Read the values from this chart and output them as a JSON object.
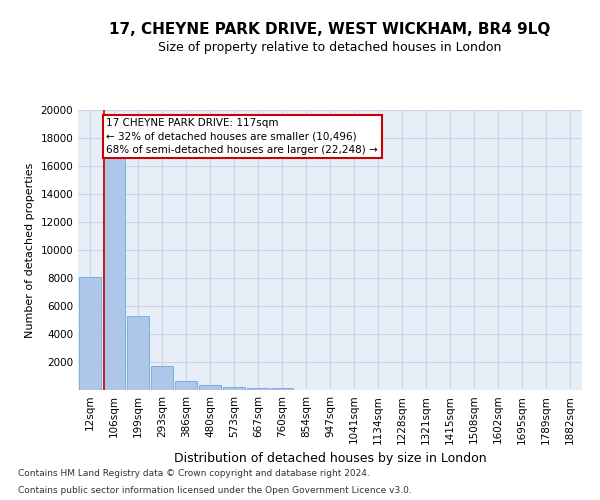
{
  "title": "17, CHEYNE PARK DRIVE, WEST WICKHAM, BR4 9LQ",
  "subtitle": "Size of property relative to detached houses in London",
  "xlabel": "Distribution of detached houses by size in London",
  "ylabel": "Number of detached properties",
  "footnote1": "Contains HM Land Registry data © Crown copyright and database right 2024.",
  "footnote2": "Contains public sector information licensed under the Open Government Licence v3.0.",
  "annotation_line1": "17 CHEYNE PARK DRIVE: 117sqm",
  "annotation_line2": "← 32% of detached houses are smaller (10,496)",
  "annotation_line3": "68% of semi-detached houses are larger (22,248) →",
  "bin_labels": [
    "12sqm",
    "106sqm",
    "199sqm",
    "293sqm",
    "386sqm",
    "480sqm",
    "573sqm",
    "667sqm",
    "760sqm",
    "854sqm",
    "947sqm",
    "1041sqm",
    "1134sqm",
    "1228sqm",
    "1321sqm",
    "1415sqm",
    "1508sqm",
    "1602sqm",
    "1695sqm",
    "1789sqm",
    "1882sqm"
  ],
  "bar_heights": [
    8100,
    16600,
    5300,
    1750,
    620,
    330,
    200,
    170,
    130,
    0,
    0,
    0,
    0,
    0,
    0,
    0,
    0,
    0,
    0,
    0,
    0
  ],
  "bar_color": "#aec6e8",
  "bar_edge_color": "#5a9fd4",
  "grid_color": "#c8d4e8",
  "background_color": "#e8eef8",
  "annotation_box_edge_color": "#cc0000",
  "vline_color": "#cc0000",
  "ylim": [
    0,
    20000
  ],
  "yticks": [
    0,
    2000,
    4000,
    6000,
    8000,
    10000,
    12000,
    14000,
    16000,
    18000,
    20000
  ],
  "title_fontsize": 11,
  "subtitle_fontsize": 9,
  "ylabel_fontsize": 8,
  "xlabel_fontsize": 9,
  "tick_fontsize": 7.5,
  "footnote_fontsize": 6.5
}
